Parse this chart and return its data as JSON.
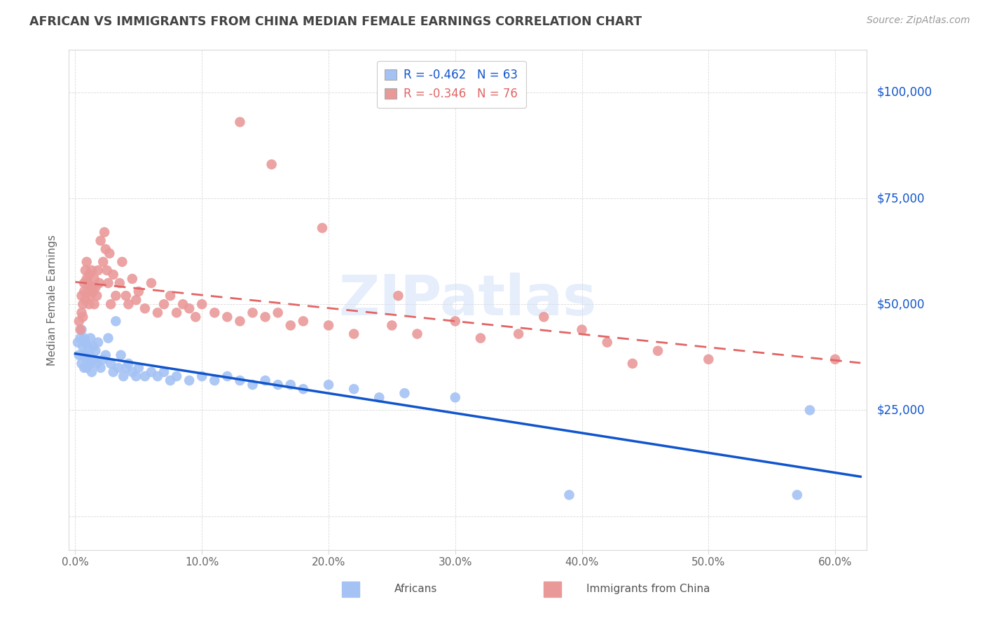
{
  "title": "AFRICAN VS IMMIGRANTS FROM CHINA MEDIAN FEMALE EARNINGS CORRELATION CHART",
  "source": "Source: ZipAtlas.com",
  "xlabel_ticks": [
    "0.0%",
    "10.0%",
    "20.0%",
    "30.0%",
    "40.0%",
    "50.0%",
    "60.0%"
  ],
  "xlabel_vals": [
    0.0,
    0.1,
    0.2,
    0.3,
    0.4,
    0.5,
    0.6
  ],
  "ylabel": "Median Female Earnings",
  "ytick_vals": [
    0,
    25000,
    50000,
    75000,
    100000
  ],
  "ytick_labels": [
    "",
    "$25,000",
    "$50,000",
    "$75,000",
    "$100,000"
  ],
  "xmin": -0.005,
  "xmax": 0.625,
  "ymin": -8000,
  "ymax": 110000,
  "watermark": "ZIPatlas",
  "africans_color": "#a4c2f4",
  "china_color": "#ea9999",
  "africans_line_color": "#1155cc",
  "china_line_color": "#e06666",
  "grid_color": "#d9d9d9",
  "background_color": "#ffffff",
  "title_color": "#434343",
  "source_color": "#999999",
  "axis_color": "#d9d9d9",
  "africans_scatter": [
    [
      0.002,
      41000
    ],
    [
      0.003,
      38000
    ],
    [
      0.004,
      42000
    ],
    [
      0.005,
      36000
    ],
    [
      0.005,
      44000
    ],
    [
      0.006,
      40000
    ],
    [
      0.006,
      38000
    ],
    [
      0.007,
      35000
    ],
    [
      0.007,
      42000
    ],
    [
      0.008,
      38000
    ],
    [
      0.008,
      41000
    ],
    [
      0.009,
      37000
    ],
    [
      0.009,
      35000
    ],
    [
      0.01,
      40000
    ],
    [
      0.01,
      36000
    ],
    [
      0.011,
      38000
    ],
    [
      0.012,
      36000
    ],
    [
      0.012,
      42000
    ],
    [
      0.013,
      34000
    ],
    [
      0.014,
      40000
    ],
    [
      0.015,
      37000
    ],
    [
      0.016,
      39000
    ],
    [
      0.017,
      36000
    ],
    [
      0.018,
      41000
    ],
    [
      0.02,
      35000
    ],
    [
      0.022,
      37000
    ],
    [
      0.024,
      38000
    ],
    [
      0.026,
      42000
    ],
    [
      0.028,
      36000
    ],
    [
      0.03,
      34000
    ],
    [
      0.032,
      46000
    ],
    [
      0.034,
      35000
    ],
    [
      0.036,
      38000
    ],
    [
      0.038,
      33000
    ],
    [
      0.04,
      35000
    ],
    [
      0.042,
      36000
    ],
    [
      0.045,
      34000
    ],
    [
      0.048,
      33000
    ],
    [
      0.05,
      35000
    ],
    [
      0.055,
      33000
    ],
    [
      0.06,
      34000
    ],
    [
      0.065,
      33000
    ],
    [
      0.07,
      34000
    ],
    [
      0.075,
      32000
    ],
    [
      0.08,
      33000
    ],
    [
      0.09,
      32000
    ],
    [
      0.1,
      33000
    ],
    [
      0.11,
      32000
    ],
    [
      0.12,
      33000
    ],
    [
      0.13,
      32000
    ],
    [
      0.14,
      31000
    ],
    [
      0.15,
      32000
    ],
    [
      0.16,
      31000
    ],
    [
      0.17,
      31000
    ],
    [
      0.18,
      30000
    ],
    [
      0.2,
      31000
    ],
    [
      0.22,
      30000
    ],
    [
      0.24,
      28000
    ],
    [
      0.26,
      29000
    ],
    [
      0.3,
      28000
    ],
    [
      0.39,
      5000
    ],
    [
      0.57,
      5000
    ],
    [
      0.58,
      25000
    ]
  ],
  "china_scatter": [
    [
      0.003,
      46000
    ],
    [
      0.004,
      44000
    ],
    [
      0.005,
      48000
    ],
    [
      0.005,
      52000
    ],
    [
      0.006,
      50000
    ],
    [
      0.006,
      47000
    ],
    [
      0.007,
      55000
    ],
    [
      0.007,
      53000
    ],
    [
      0.008,
      58000
    ],
    [
      0.008,
      51000
    ],
    [
      0.009,
      56000
    ],
    [
      0.009,
      60000
    ],
    [
      0.01,
      53000
    ],
    [
      0.01,
      55000
    ],
    [
      0.011,
      50000
    ],
    [
      0.011,
      57000
    ],
    [
      0.012,
      52000
    ],
    [
      0.013,
      54000
    ],
    [
      0.013,
      58000
    ],
    [
      0.014,
      53000
    ],
    [
      0.015,
      56000
    ],
    [
      0.015,
      50000
    ],
    [
      0.016,
      54000
    ],
    [
      0.017,
      52000
    ],
    [
      0.018,
      58000
    ],
    [
      0.019,
      55000
    ],
    [
      0.02,
      65000
    ],
    [
      0.022,
      60000
    ],
    [
      0.023,
      67000
    ],
    [
      0.024,
      63000
    ],
    [
      0.025,
      58000
    ],
    [
      0.026,
      55000
    ],
    [
      0.027,
      62000
    ],
    [
      0.028,
      50000
    ],
    [
      0.03,
      57000
    ],
    [
      0.032,
      52000
    ],
    [
      0.035,
      55000
    ],
    [
      0.037,
      60000
    ],
    [
      0.04,
      52000
    ],
    [
      0.042,
      50000
    ],
    [
      0.045,
      56000
    ],
    [
      0.048,
      51000
    ],
    [
      0.05,
      53000
    ],
    [
      0.055,
      49000
    ],
    [
      0.06,
      55000
    ],
    [
      0.065,
      48000
    ],
    [
      0.07,
      50000
    ],
    [
      0.075,
      52000
    ],
    [
      0.08,
      48000
    ],
    [
      0.085,
      50000
    ],
    [
      0.09,
      49000
    ],
    [
      0.095,
      47000
    ],
    [
      0.1,
      50000
    ],
    [
      0.11,
      48000
    ],
    [
      0.12,
      47000
    ],
    [
      0.13,
      46000
    ],
    [
      0.14,
      48000
    ],
    [
      0.15,
      47000
    ],
    [
      0.16,
      48000
    ],
    [
      0.17,
      45000
    ],
    [
      0.18,
      46000
    ],
    [
      0.2,
      45000
    ],
    [
      0.22,
      43000
    ],
    [
      0.25,
      45000
    ],
    [
      0.27,
      43000
    ],
    [
      0.3,
      46000
    ],
    [
      0.32,
      42000
    ],
    [
      0.35,
      43000
    ],
    [
      0.37,
      47000
    ],
    [
      0.4,
      44000
    ],
    [
      0.42,
      41000
    ],
    [
      0.44,
      36000
    ],
    [
      0.46,
      39000
    ],
    [
      0.5,
      37000
    ],
    [
      0.6,
      37000
    ],
    [
      0.13,
      93000
    ],
    [
      0.155,
      83000
    ],
    [
      0.195,
      68000
    ],
    [
      0.255,
      52000
    ]
  ]
}
